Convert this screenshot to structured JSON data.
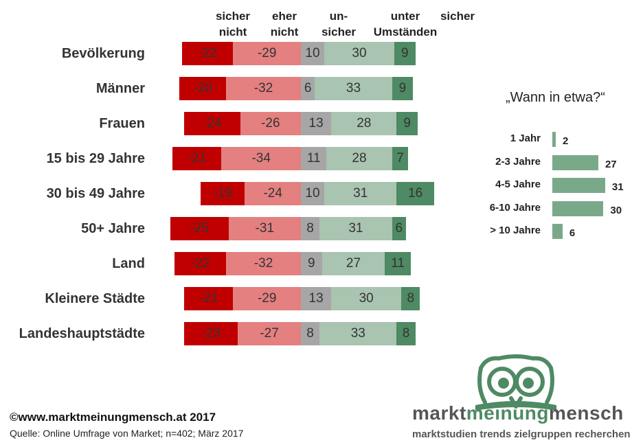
{
  "chart_data": [
    {
      "type": "bar",
      "orientation": "horizontal-diverging",
      "stacked": true,
      "column_headers": [
        "sicher nicht",
        "eher nicht",
        "un-sicher",
        "unter Umständen",
        "sicher"
      ],
      "categories": [
        "Bevölkerung",
        "Männer",
        "Frauen",
        "15 bis 29 Jahre",
        "30 bis 49 Jahre",
        "50+ Jahre",
        "Land",
        "Kleinere Städte",
        "Landeshauptstädte"
      ],
      "series": [
        {
          "name": "sicher nicht",
          "color": "#c00000",
          "values": [
            -22,
            -20,
            -24,
            -21,
            -19,
            -25,
            -22,
            -21,
            -23
          ]
        },
        {
          "name": "eher nicht",
          "color": "#e48080",
          "values": [
            -29,
            -32,
            -26,
            -34,
            -24,
            -31,
            -32,
            -29,
            -27
          ]
        },
        {
          "name": "un-sicher",
          "color": "#a6a6a6",
          "values": [
            10,
            6,
            13,
            11,
            10,
            8,
            9,
            13,
            8
          ]
        },
        {
          "name": "unter Umständen",
          "color": "#a9c4b0",
          "values": [
            30,
            33,
            28,
            28,
            31,
            31,
            27,
            30,
            33
          ]
        },
        {
          "name": "sicher",
          "color": "#4e8a63",
          "values": [
            9,
            9,
            9,
            7,
            16,
            6,
            11,
            8,
            8
          ]
        }
      ],
      "grid": false,
      "legend": "top (column headers)"
    },
    {
      "type": "bar",
      "orientation": "horizontal",
      "title": "„Wann in etwa?“",
      "categories": [
        "1 Jahr",
        "2-3 Jahre",
        "4-5 Jahre",
        "6-10 Jahre",
        "> 10 Jahre"
      ],
      "values": [
        2,
        27,
        31,
        30,
        6
      ],
      "color": "#7aa98a",
      "grid": false
    }
  ],
  "footer": {
    "copyright": "©www.marktmeinungmensch.at 2017",
    "source": "Quelle: Online Umfrage von Market; n=402; März 2017"
  },
  "logo": {
    "name_part1": "markt",
    "name_part2": "meinung",
    "name_part3": "mensch",
    "tagline": "marktstudien trends zielgruppen recherchen",
    "color_dark": "#555555",
    "color_green": "#4e8a63",
    "icon": "owl-icon"
  }
}
